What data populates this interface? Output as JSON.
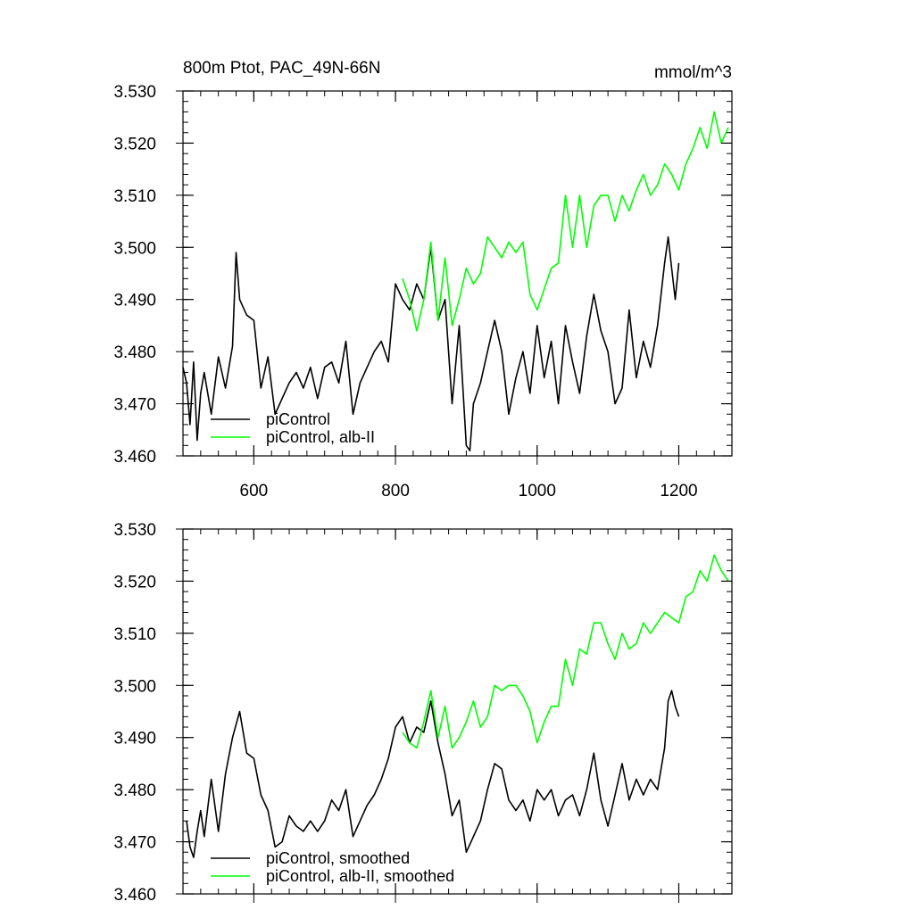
{
  "chart_data": [
    {
      "type": "line",
      "title": "800m Ptot, PAC_49N-66N",
      "units": "mmol/m^3",
      "xlim": [
        500,
        1275
      ],
      "ylim": [
        3.46,
        3.53
      ],
      "x_ticks": [
        600,
        800,
        1000,
        1200
      ],
      "x_tick_labels": [
        "600",
        "800",
        "1000",
        "1200"
      ],
      "y_ticks": [
        3.46,
        3.47,
        3.48,
        3.49,
        3.5,
        3.51,
        3.52,
        3.53
      ],
      "y_tick_labels": [
        "3.460",
        "3.470",
        "3.480",
        "3.490",
        "3.500",
        "3.510",
        "3.520",
        "3.530"
      ],
      "grid": false,
      "legend_position": "bottom-left",
      "series": [
        {
          "name": "piControl",
          "color": "#000000",
          "x": [
            500,
            505,
            510,
            515,
            520,
            525,
            530,
            540,
            550,
            560,
            570,
            575,
            580,
            590,
            600,
            610,
            620,
            630,
            640,
            650,
            660,
            670,
            680,
            690,
            700,
            710,
            720,
            730,
            740,
            750,
            760,
            770,
            780,
            790,
            800,
            810,
            820,
            830,
            840,
            850,
            860,
            870,
            880,
            890,
            900,
            905,
            910,
            920,
            930,
            940,
            950,
            960,
            970,
            980,
            990,
            1000,
            1010,
            1020,
            1030,
            1040,
            1050,
            1060,
            1070,
            1080,
            1090,
            1100,
            1110,
            1120,
            1130,
            1140,
            1150,
            1160,
            1170,
            1180,
            1185,
            1190,
            1195,
            1200
          ],
          "values": [
            3.477,
            3.474,
            3.466,
            3.478,
            3.463,
            3.472,
            3.476,
            3.468,
            3.479,
            3.473,
            3.481,
            3.499,
            3.49,
            3.487,
            3.486,
            3.473,
            3.479,
            3.468,
            3.471,
            3.474,
            3.476,
            3.473,
            3.477,
            3.471,
            3.477,
            3.478,
            3.474,
            3.482,
            3.468,
            3.474,
            3.477,
            3.48,
            3.482,
            3.478,
            3.493,
            3.49,
            3.488,
            3.493,
            3.49,
            3.5,
            3.486,
            3.49,
            3.47,
            3.485,
            3.462,
            3.461,
            3.47,
            3.474,
            3.48,
            3.486,
            3.48,
            3.468,
            3.475,
            3.48,
            3.472,
            3.485,
            3.475,
            3.482,
            3.47,
            3.485,
            3.478,
            3.472,
            3.483,
            3.491,
            3.484,
            3.48,
            3.47,
            3.473,
            3.488,
            3.475,
            3.482,
            3.477,
            3.485,
            3.497,
            3.502,
            3.496,
            3.49,
            3.497
          ]
        },
        {
          "name": "piControl, alb-II",
          "color": "#00ff00",
          "x": [
            810,
            820,
            830,
            840,
            850,
            860,
            870,
            880,
            890,
            900,
            910,
            920,
            930,
            940,
            950,
            960,
            970,
            980,
            990,
            1000,
            1010,
            1020,
            1030,
            1040,
            1050,
            1060,
            1070,
            1080,
            1090,
            1100,
            1110,
            1120,
            1130,
            1140,
            1150,
            1160,
            1170,
            1180,
            1190,
            1200,
            1210,
            1220,
            1230,
            1240,
            1250,
            1260,
            1270
          ],
          "values": [
            3.494,
            3.49,
            3.484,
            3.49,
            3.501,
            3.486,
            3.498,
            3.485,
            3.49,
            3.496,
            3.493,
            3.495,
            3.502,
            3.5,
            3.498,
            3.501,
            3.499,
            3.501,
            3.491,
            3.488,
            3.492,
            3.496,
            3.497,
            3.51,
            3.5,
            3.51,
            3.5,
            3.508,
            3.51,
            3.51,
            3.505,
            3.51,
            3.507,
            3.511,
            3.514,
            3.51,
            3.512,
            3.516,
            3.514,
            3.511,
            3.516,
            3.519,
            3.523,
            3.519,
            3.526,
            3.52,
            3.523
          ]
        }
      ]
    },
    {
      "type": "line",
      "xlim": [
        500,
        1275
      ],
      "ylim": [
        3.46,
        3.53
      ],
      "x_ticks": [
        600,
        800,
        1000,
        1200
      ],
      "y_ticks": [
        3.46,
        3.47,
        3.48,
        3.49,
        3.5,
        3.51,
        3.52,
        3.53
      ],
      "y_tick_labels": [
        "3.460",
        "3.470",
        "3.480",
        "3.490",
        "3.500",
        "3.510",
        "3.520",
        "3.530"
      ],
      "grid": false,
      "legend_position": "bottom-left",
      "series": [
        {
          "name": "piControl, smoothed",
          "color": "#000000",
          "x": [
            505,
            510,
            515,
            520,
            525,
            530,
            540,
            550,
            560,
            570,
            580,
            590,
            600,
            610,
            620,
            630,
            640,
            650,
            660,
            670,
            680,
            690,
            700,
            710,
            720,
            730,
            740,
            750,
            760,
            770,
            780,
            790,
            800,
            810,
            820,
            830,
            840,
            850,
            860,
            870,
            880,
            890,
            900,
            910,
            920,
            930,
            940,
            950,
            960,
            970,
            980,
            990,
            1000,
            1010,
            1020,
            1030,
            1040,
            1050,
            1060,
            1070,
            1080,
            1090,
            1100,
            1110,
            1120,
            1130,
            1140,
            1150,
            1160,
            1170,
            1180,
            1185,
            1190,
            1195,
            1200
          ],
          "values": [
            3.474,
            3.469,
            3.467,
            3.472,
            3.476,
            3.471,
            3.482,
            3.472,
            3.483,
            3.49,
            3.495,
            3.487,
            3.486,
            3.479,
            3.476,
            3.469,
            3.47,
            3.475,
            3.473,
            3.472,
            3.474,
            3.472,
            3.474,
            3.478,
            3.476,
            3.48,
            3.471,
            3.474,
            3.477,
            3.479,
            3.482,
            3.486,
            3.492,
            3.494,
            3.489,
            3.492,
            3.491,
            3.497,
            3.489,
            3.483,
            3.475,
            3.478,
            3.468,
            3.471,
            3.474,
            3.48,
            3.485,
            3.484,
            3.478,
            3.476,
            3.478,
            3.474,
            3.48,
            3.478,
            3.48,
            3.475,
            3.478,
            3.479,
            3.475,
            3.48,
            3.487,
            3.478,
            3.473,
            3.479,
            3.485,
            3.478,
            3.482,
            3.479,
            3.482,
            3.48,
            3.488,
            3.497,
            3.499,
            3.496,
            3.494
          ]
        },
        {
          "name": "piControl, alb-II, smoothed",
          "color": "#00ff00",
          "x": [
            810,
            820,
            830,
            840,
            850,
            860,
            870,
            880,
            890,
            900,
            910,
            920,
            930,
            940,
            950,
            960,
            970,
            980,
            990,
            1000,
            1010,
            1020,
            1030,
            1040,
            1050,
            1060,
            1070,
            1080,
            1090,
            1100,
            1110,
            1120,
            1130,
            1140,
            1150,
            1160,
            1170,
            1180,
            1190,
            1200,
            1210,
            1220,
            1230,
            1240,
            1250,
            1260,
            1270
          ],
          "values": [
            3.491,
            3.489,
            3.488,
            3.493,
            3.499,
            3.49,
            3.496,
            3.488,
            3.49,
            3.493,
            3.497,
            3.492,
            3.494,
            3.5,
            3.499,
            3.5,
            3.5,
            3.498,
            3.495,
            3.489,
            3.493,
            3.496,
            3.496,
            3.505,
            3.5,
            3.507,
            3.506,
            3.512,
            3.512,
            3.508,
            3.505,
            3.51,
            3.507,
            3.508,
            3.512,
            3.51,
            3.512,
            3.514,
            3.513,
            3.512,
            3.517,
            3.518,
            3.522,
            3.52,
            3.525,
            3.522,
            3.52
          ]
        }
      ]
    }
  ]
}
